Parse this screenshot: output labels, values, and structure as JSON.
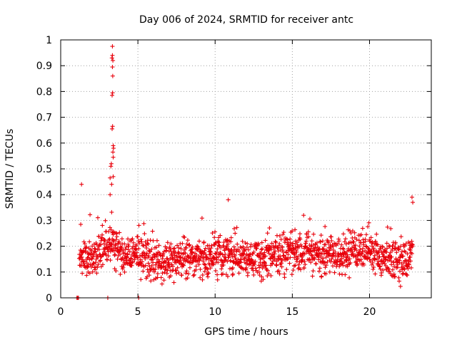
{
  "chart_data": {
    "type": "scatter",
    "title": "Day 006 of 2024, SRMTID for receiver antc",
    "xlabel": "GPS time / hours",
    "ylabel": "SRMTID / TECUs",
    "xlim": [
      0,
      24
    ],
    "ylim": [
      0,
      1
    ],
    "xticks": [
      0,
      5,
      10,
      15,
      20
    ],
    "yticks": [
      0,
      0.1,
      0.2,
      0.3,
      0.4,
      0.5,
      0.6,
      0.7,
      0.8,
      0.9,
      1
    ],
    "grid": true,
    "legend": "none",
    "marker": "plus",
    "color": "#e8000b",
    "profile_hours": [
      1.2,
      2.0,
      2.8,
      3.1,
      3.5,
      4.2,
      5.0,
      6.0,
      7.0,
      8.0,
      9.0,
      10.0,
      11.0,
      12.0,
      13.0,
      14.0,
      15.0,
      16.0,
      17.0,
      18.0,
      19.0,
      20.0,
      21.0,
      22.0,
      22.8
    ],
    "profile_median_tecu": [
      0.17,
      0.15,
      0.2,
      0.22,
      0.19,
      0.17,
      0.17,
      0.14,
      0.14,
      0.16,
      0.15,
      0.16,
      0.17,
      0.15,
      0.15,
      0.17,
      0.18,
      0.18,
      0.16,
      0.16,
      0.18,
      0.19,
      0.15,
      0.14,
      0.17
    ],
    "peak_points": [
      {
        "x": 3.35,
        "y": 0.975
      },
      {
        "x": 3.35,
        "y": 0.94
      },
      {
        "x": 3.32,
        "y": 0.93
      },
      {
        "x": 3.38,
        "y": 0.92
      },
      {
        "x": 3.35,
        "y": 0.895
      },
      {
        "x": 3.37,
        "y": 0.86
      },
      {
        "x": 3.36,
        "y": 0.795
      },
      {
        "x": 3.33,
        "y": 0.785
      },
      {
        "x": 3.36,
        "y": 0.665
      },
      {
        "x": 3.33,
        "y": 0.655
      },
      {
        "x": 3.4,
        "y": 0.59
      },
      {
        "x": 3.42,
        "y": 0.58
      },
      {
        "x": 3.38,
        "y": 0.565
      },
      {
        "x": 3.4,
        "y": 0.545
      },
      {
        "x": 3.28,
        "y": 0.52
      },
      {
        "x": 3.25,
        "y": 0.51
      },
      {
        "x": 3.4,
        "y": 0.47
      },
      {
        "x": 3.2,
        "y": 0.465
      },
      {
        "x": 3.3,
        "y": 0.44
      },
      {
        "x": 3.2,
        "y": 0.4
      },
      {
        "x": 1.35,
        "y": 0.44
      },
      {
        "x": 22.75,
        "y": 0.39
      },
      {
        "x": 22.8,
        "y": 0.37
      },
      {
        "x": 10.85,
        "y": 0.38
      },
      {
        "x": 1.1,
        "y": 0.0
      },
      {
        "x": 1.05,
        "y": 0.0
      },
      {
        "x": 1.15,
        "y": 0.0
      },
      {
        "x": 3.05,
        "y": 0.0
      },
      {
        "x": 5.05,
        "y": 0.0
      }
    ]
  }
}
